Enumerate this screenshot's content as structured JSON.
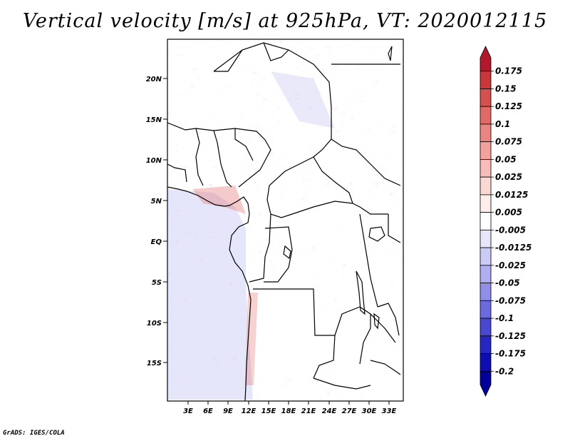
{
  "title": "Vertical velocity [m/s] at 925hPa, VT: 2020012115",
  "footer": "GrADS: IGES/COLA",
  "map": {
    "variable": "Vertical velocity",
    "units": "m/s",
    "level": "925hPa",
    "valid_time": "2020012115",
    "lon_labels": [
      "3E",
      "6E",
      "9E",
      "12E",
      "15E",
      "18E",
      "21E",
      "24E",
      "27E",
      "30E",
      "33E"
    ],
    "lat_labels": [
      "20N",
      "15N",
      "10N",
      "5N",
      "EQ",
      "5S",
      "10S",
      "15S"
    ]
  },
  "colorbar": {
    "labels": [
      "0.175",
      "0.15",
      "0.125",
      "0.1",
      "0.075",
      "0.05",
      "0.025",
      "0.0125",
      "0.005",
      "-0.005",
      "-0.0125",
      "-0.025",
      "-0.05",
      "-0.075",
      "-0.1",
      "-0.125",
      "-0.175",
      "-0.2"
    ],
    "colors": [
      "#b2182b",
      "#c8373a",
      "#d65050",
      "#e06a68",
      "#ea8582",
      "#f2a19d",
      "#f8bdb8",
      "#fbd8d3",
      "#fdeeec",
      "#ffffff",
      "#e6e6fb",
      "#cbcbf5",
      "#aeaef0",
      "#8f8fe8",
      "#6b6bde",
      "#4848d2",
      "#2626c2",
      "#0e0eb0",
      "#000099"
    ]
  }
}
